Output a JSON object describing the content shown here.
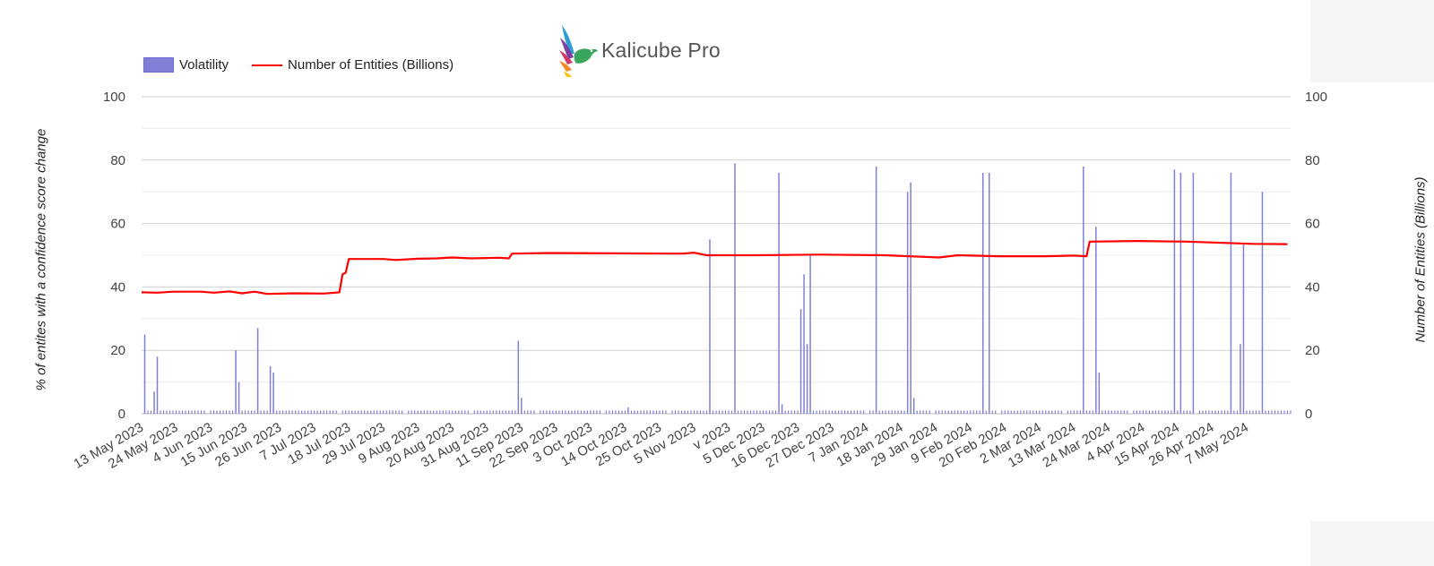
{
  "legend": {
    "volatility_label": "Volatility",
    "entities_label": "Number of Entities (Billions)"
  },
  "logo": {
    "text": "Kalicube Pro"
  },
  "colors": {
    "bars": "#7f7fd5",
    "line": "#ff0000",
    "grid": "#dcdcdc"
  },
  "chart_data": {
    "type": "bar",
    "ylabel": "% of entites with a confidence score change",
    "y2label": "Number of Entities (Billions)",
    "ylim": [
      0,
      100
    ],
    "y2lim": [
      0,
      100
    ],
    "yticks": [
      0,
      20,
      40,
      60,
      80,
      100
    ],
    "grid": true,
    "legend_position": "top-left",
    "x_tick_labels": [
      "13 May 2023",
      "24 May 2023",
      "4 Jun 2023",
      "15 Jun 2023",
      "26 Jun 2023",
      "7 Jul 2023",
      "18 Jul 2023",
      "29 Jul 2023",
      "9 Aug 2023",
      "20 Aug 2023",
      "31 Aug 2023",
      "11 Sep 2023",
      "22 Sep 2023",
      "3 Oct 2023",
      "14 Oct 2023",
      "25 Oct 2023",
      "5 Nov 2023",
      "v 2023",
      "5 Dec 2023",
      "16 Dec 2023",
      "27 Dec 2023",
      "7 Jan 2024",
      "18 Jan 2024",
      "29 Jan 2024",
      "9 Feb 2024",
      "20 Feb 2024",
      "2 Mar 2024",
      "13 Mar 2024",
      "24 Mar 2024",
      "4 Apr 2024",
      "15 Apr 2024",
      "26 Apr 2024",
      "7 May 2024"
    ],
    "series": [
      {
        "name": "Volatility",
        "type": "bar",
        "points": [
          [
            "2023-05-14",
            25
          ],
          [
            "2023-05-17",
            7
          ],
          [
            "2023-05-18",
            18
          ],
          [
            "2023-06-12",
            20
          ],
          [
            "2023-06-13",
            10
          ],
          [
            "2023-06-19",
            27
          ],
          [
            "2023-06-23",
            15
          ],
          [
            "2023-06-24",
            13
          ],
          [
            "2023-09-10",
            23
          ],
          [
            "2023-09-11",
            5
          ],
          [
            "2023-10-15",
            2
          ],
          [
            "2023-11-10",
            55
          ],
          [
            "2023-11-18",
            79
          ],
          [
            "2023-12-02",
            76
          ],
          [
            "2023-12-03",
            3
          ],
          [
            "2023-12-09",
            33
          ],
          [
            "2023-12-10",
            44
          ],
          [
            "2023-12-11",
            22
          ],
          [
            "2023-12-12",
            50
          ],
          [
            "2024-01-02",
            78
          ],
          [
            "2024-01-12",
            70
          ],
          [
            "2024-01-13",
            73
          ],
          [
            "2024-01-14",
            5
          ],
          [
            "2024-02-05",
            76
          ],
          [
            "2024-02-07",
            76
          ],
          [
            "2024-03-08",
            78
          ],
          [
            "2024-03-12",
            59
          ],
          [
            "2024-03-13",
            13
          ],
          [
            "2024-04-06",
            77
          ],
          [
            "2024-04-08",
            76
          ],
          [
            "2024-04-12",
            76
          ],
          [
            "2024-04-24",
            76
          ],
          [
            "2024-04-27",
            22
          ],
          [
            "2024-04-28",
            54
          ],
          [
            "2024-05-04",
            70
          ]
        ],
        "baseline_value": 1
      },
      {
        "name": "Number of Entities (Billions)",
        "type": "line",
        "points": [
          [
            "2023-05-13",
            38.3
          ],
          [
            "2023-05-18",
            38.2
          ],
          [
            "2023-05-23",
            38.5
          ],
          [
            "2023-06-01",
            38.5
          ],
          [
            "2023-06-05",
            38.2
          ],
          [
            "2023-06-10",
            38.6
          ],
          [
            "2023-06-14",
            38.0
          ],
          [
            "2023-06-18",
            38.5
          ],
          [
            "2023-06-22",
            37.8
          ],
          [
            "2023-07-01",
            38.0
          ],
          [
            "2023-07-10",
            37.9
          ],
          [
            "2023-07-15",
            38.3
          ],
          [
            "2023-07-16",
            44.0
          ],
          [
            "2023-07-17",
            44.5
          ],
          [
            "2023-07-18",
            48.8
          ],
          [
            "2023-07-29",
            48.8
          ],
          [
            "2023-08-02",
            48.5
          ],
          [
            "2023-08-09",
            48.9
          ],
          [
            "2023-08-15",
            49.0
          ],
          [
            "2023-08-20",
            49.3
          ],
          [
            "2023-08-26",
            49.0
          ],
          [
            "2023-09-04",
            49.2
          ],
          [
            "2023-09-07",
            49.0
          ],
          [
            "2023-09-08",
            50.5
          ],
          [
            "2023-09-20",
            50.7
          ],
          [
            "2023-10-10",
            50.6
          ],
          [
            "2023-11-01",
            50.5
          ],
          [
            "2023-11-05",
            50.8
          ],
          [
            "2023-11-09",
            50.0
          ],
          [
            "2023-11-25",
            50.0
          ],
          [
            "2023-12-15",
            50.2
          ],
          [
            "2024-01-05",
            50.0
          ],
          [
            "2024-01-22",
            49.3
          ],
          [
            "2024-01-28",
            50.0
          ],
          [
            "2024-02-10",
            49.7
          ],
          [
            "2024-02-25",
            49.7
          ],
          [
            "2024-03-05",
            49.9
          ],
          [
            "2024-03-09",
            49.7
          ],
          [
            "2024-03-10",
            54.3
          ],
          [
            "2024-03-25",
            54.5
          ],
          [
            "2024-04-10",
            54.3
          ],
          [
            "2024-05-01",
            53.6
          ],
          [
            "2024-05-12",
            53.5
          ]
        ]
      }
    ]
  }
}
